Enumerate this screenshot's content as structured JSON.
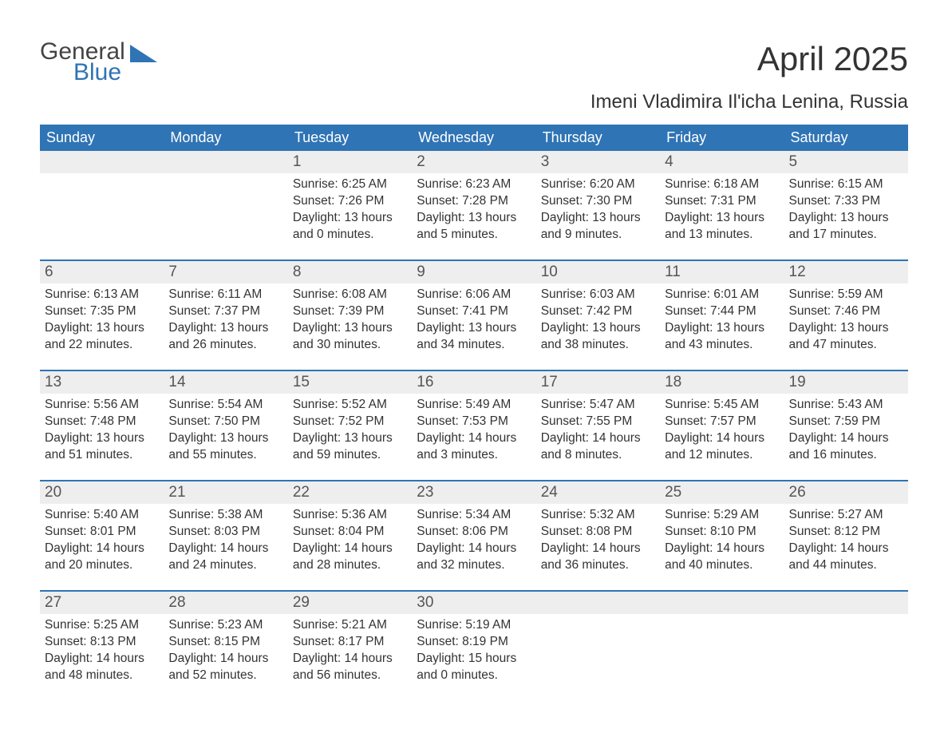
{
  "logo": {
    "word1": "General",
    "word2": "Blue",
    "tri_color": "#2f74b5",
    "text1_color": "#444444",
    "text2_color": "#2f74b5"
  },
  "title": "April 2025",
  "subtitle": "Imeni Vladimira Il'icha Lenina, Russia",
  "colors": {
    "header_bg": "#2f74b5",
    "header_text": "#ffffff",
    "daynum_bg": "#eeeeee",
    "daynum_text": "#555555",
    "body_text": "#333333",
    "week_divider": "#2f74b5",
    "page_bg": "#ffffff"
  },
  "typography": {
    "title_fontsize": 42,
    "subtitle_fontsize": 24,
    "dow_fontsize": 18,
    "daynum_fontsize": 19,
    "cell_fontsize": 15.5,
    "logo_fontsize": 30
  },
  "day_names": [
    "Sunday",
    "Monday",
    "Tuesday",
    "Wednesday",
    "Thursday",
    "Friday",
    "Saturday"
  ],
  "leading_blanks": 2,
  "trailing_blanks": 3,
  "days": [
    {
      "n": "1",
      "sunrise": "6:25 AM",
      "sunset": "7:26 PM",
      "dh": 13,
      "dm": 0
    },
    {
      "n": "2",
      "sunrise": "6:23 AM",
      "sunset": "7:28 PM",
      "dh": 13,
      "dm": 5
    },
    {
      "n": "3",
      "sunrise": "6:20 AM",
      "sunset": "7:30 PM",
      "dh": 13,
      "dm": 9
    },
    {
      "n": "4",
      "sunrise": "6:18 AM",
      "sunset": "7:31 PM",
      "dh": 13,
      "dm": 13
    },
    {
      "n": "5",
      "sunrise": "6:15 AM",
      "sunset": "7:33 PM",
      "dh": 13,
      "dm": 17
    },
    {
      "n": "6",
      "sunrise": "6:13 AM",
      "sunset": "7:35 PM",
      "dh": 13,
      "dm": 22
    },
    {
      "n": "7",
      "sunrise": "6:11 AM",
      "sunset": "7:37 PM",
      "dh": 13,
      "dm": 26
    },
    {
      "n": "8",
      "sunrise": "6:08 AM",
      "sunset": "7:39 PM",
      "dh": 13,
      "dm": 30
    },
    {
      "n": "9",
      "sunrise": "6:06 AM",
      "sunset": "7:41 PM",
      "dh": 13,
      "dm": 34
    },
    {
      "n": "10",
      "sunrise": "6:03 AM",
      "sunset": "7:42 PM",
      "dh": 13,
      "dm": 38
    },
    {
      "n": "11",
      "sunrise": "6:01 AM",
      "sunset": "7:44 PM",
      "dh": 13,
      "dm": 43
    },
    {
      "n": "12",
      "sunrise": "5:59 AM",
      "sunset": "7:46 PM",
      "dh": 13,
      "dm": 47
    },
    {
      "n": "13",
      "sunrise": "5:56 AM",
      "sunset": "7:48 PM",
      "dh": 13,
      "dm": 51
    },
    {
      "n": "14",
      "sunrise": "5:54 AM",
      "sunset": "7:50 PM",
      "dh": 13,
      "dm": 55
    },
    {
      "n": "15",
      "sunrise": "5:52 AM",
      "sunset": "7:52 PM",
      "dh": 13,
      "dm": 59
    },
    {
      "n": "16",
      "sunrise": "5:49 AM",
      "sunset": "7:53 PM",
      "dh": 14,
      "dm": 3
    },
    {
      "n": "17",
      "sunrise": "5:47 AM",
      "sunset": "7:55 PM",
      "dh": 14,
      "dm": 8
    },
    {
      "n": "18",
      "sunrise": "5:45 AM",
      "sunset": "7:57 PM",
      "dh": 14,
      "dm": 12
    },
    {
      "n": "19",
      "sunrise": "5:43 AM",
      "sunset": "7:59 PM",
      "dh": 14,
      "dm": 16
    },
    {
      "n": "20",
      "sunrise": "5:40 AM",
      "sunset": "8:01 PM",
      "dh": 14,
      "dm": 20
    },
    {
      "n": "21",
      "sunrise": "5:38 AM",
      "sunset": "8:03 PM",
      "dh": 14,
      "dm": 24
    },
    {
      "n": "22",
      "sunrise": "5:36 AM",
      "sunset": "8:04 PM",
      "dh": 14,
      "dm": 28
    },
    {
      "n": "23",
      "sunrise": "5:34 AM",
      "sunset": "8:06 PM",
      "dh": 14,
      "dm": 32
    },
    {
      "n": "24",
      "sunrise": "5:32 AM",
      "sunset": "8:08 PM",
      "dh": 14,
      "dm": 36
    },
    {
      "n": "25",
      "sunrise": "5:29 AM",
      "sunset": "8:10 PM",
      "dh": 14,
      "dm": 40
    },
    {
      "n": "26",
      "sunrise": "5:27 AM",
      "sunset": "8:12 PM",
      "dh": 14,
      "dm": 44
    },
    {
      "n": "27",
      "sunrise": "5:25 AM",
      "sunset": "8:13 PM",
      "dh": 14,
      "dm": 48
    },
    {
      "n": "28",
      "sunrise": "5:23 AM",
      "sunset": "8:15 PM",
      "dh": 14,
      "dm": 52
    },
    {
      "n": "29",
      "sunrise": "5:21 AM",
      "sunset": "8:17 PM",
      "dh": 14,
      "dm": 56
    },
    {
      "n": "30",
      "sunrise": "5:19 AM",
      "sunset": "8:19 PM",
      "dh": 15,
      "dm": 0
    }
  ],
  "labels": {
    "sunrise_prefix": "Sunrise: ",
    "sunset_prefix": "Sunset: ",
    "daylight_prefix": "Daylight: ",
    "hours_word": " hours",
    "and_word": "and ",
    "minutes_suffix": " minutes."
  }
}
